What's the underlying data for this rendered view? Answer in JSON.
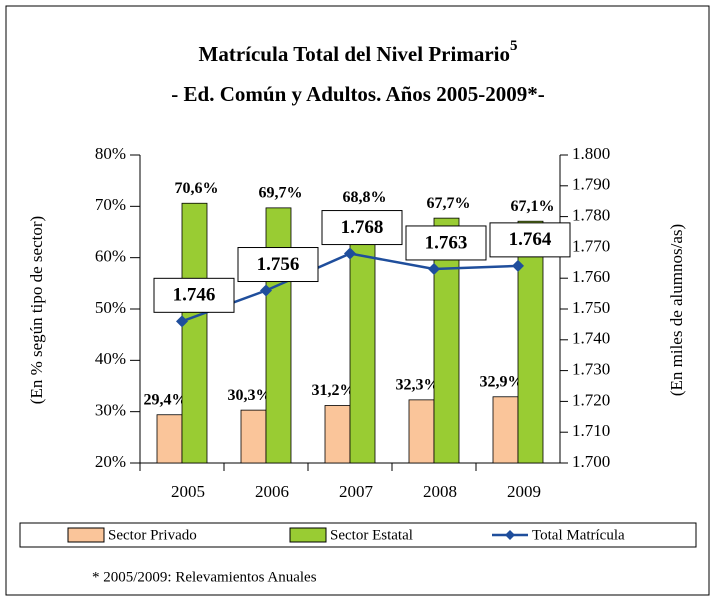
{
  "chart_data": {
    "type": "bar",
    "title": "Matrícula Total del Nivel Primario",
    "title_superscript": "5",
    "subtitle": "- Ed. Común y  Adultos. Años 2005-2009*-",
    "y_label": "(En % según tipo de sector)",
    "y2_label": "(En miles de alumnos/as)",
    "footnote": "* 2005/2009: Relevamientos Anuales",
    "categories": [
      "2005",
      "2006",
      "2007",
      "2008",
      "2009"
    ],
    "ylim": [
      20,
      80
    ],
    "yticks": [
      {
        "value": 20,
        "label": "20%"
      },
      {
        "value": 30,
        "label": "30%"
      },
      {
        "value": 40,
        "label": "40%"
      },
      {
        "value": 50,
        "label": "50%"
      },
      {
        "value": 60,
        "label": "60%"
      },
      {
        "value": 70,
        "label": "70%"
      },
      {
        "value": 80,
        "label": "80%"
      }
    ],
    "y2lim": [
      1700,
      1800
    ],
    "y2ticks": [
      {
        "value": 1700,
        "label": "1.700"
      },
      {
        "value": 1710,
        "label": "1.710"
      },
      {
        "value": 1720,
        "label": "1.720"
      },
      {
        "value": 1730,
        "label": "1.730"
      },
      {
        "value": 1740,
        "label": "1.740"
      },
      {
        "value": 1750,
        "label": "1.750"
      },
      {
        "value": 1760,
        "label": "1.760"
      },
      {
        "value": 1770,
        "label": "1.770"
      },
      {
        "value": 1780,
        "label": "1.780"
      },
      {
        "value": 1790,
        "label": "1.790"
      },
      {
        "value": 1800,
        "label": "1.800"
      }
    ],
    "legend": "bottom",
    "series": [
      {
        "name": "Sector Privado",
        "type": "bar",
        "color": "#fac59a",
        "values": [
          29.4,
          30.3,
          31.2,
          32.3,
          32.9
        ],
        "value_labels": [
          "29,4%",
          "30,3%",
          "31,2%",
          "32,3%",
          "32,9%"
        ]
      },
      {
        "name": "Sector Estatal",
        "type": "bar",
        "color": "#99cc33",
        "values": [
          70.6,
          69.7,
          68.8,
          67.7,
          67.1
        ],
        "value_labels": [
          "70,6%",
          "69,7%",
          "68,8%",
          "67,7%",
          "67,1%"
        ]
      },
      {
        "name": "Total Matrícula",
        "type": "line",
        "axis": "y2",
        "color": "#1f4e9c",
        "values": [
          1746,
          1756,
          1768,
          1763,
          1764
        ],
        "value_labels": [
          "1.746",
          "1.756",
          "1.768",
          "1.763",
          "1.764"
        ]
      }
    ]
  }
}
